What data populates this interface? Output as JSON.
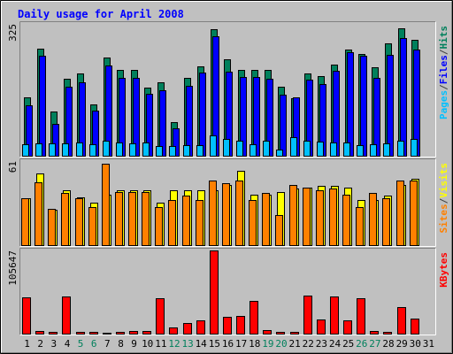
{
  "chart_data": {
    "type": "bar",
    "title": "Daily usage for April 2008",
    "categories": [
      "1",
      "2",
      "3",
      "4",
      "5",
      "6",
      "7",
      "8",
      "9",
      "10",
      "11",
      "12",
      "13",
      "14",
      "15",
      "16",
      "17",
      "18",
      "19",
      "20",
      "21",
      "22",
      "23",
      "24",
      "25",
      "26",
      "27",
      "28",
      "29",
      "30",
      "31"
    ],
    "weekend_days": [
      "5",
      "6",
      "12",
      "13",
      "19",
      "20",
      "26",
      "27"
    ],
    "panels": [
      {
        "id": "hits-files-pages",
        "ymax_label": "325",
        "ymax": 325,
        "legend": [
          {
            "name": "Pages",
            "color": "#00c0ff"
          },
          {
            "name": "/",
            "color": "#404040"
          },
          {
            "name": "Files",
            "color": "#0000ff"
          },
          {
            "name": "/",
            "color": "#404040"
          },
          {
            "name": "Hits",
            "color": "#00805c"
          }
        ],
        "series": [
          {
            "name": "Hits",
            "color": "#00805c",
            "values": [
              145,
              264,
              110,
              190,
              203,
              128,
              243,
              213,
              212,
              170,
              182,
              84,
              192,
              220,
              312,
              238,
              212,
              212,
              212,
              172,
              143,
              203,
              197,
              226,
              262,
              252,
              218,
              278,
              314,
              286,
              0
            ]
          },
          {
            "name": "Files",
            "color": "#0000ff",
            "values": [
              126,
              246,
              80,
              172,
              182,
              112,
              223,
              193,
              193,
              154,
              162,
              70,
              173,
              205,
              294,
              209,
              195,
              195,
              190,
              151,
              146,
              189,
              177,
              210,
              255,
              248,
              192,
              250,
              290,
              262,
              0
            ]
          },
          {
            "name": "Pages",
            "color": "#00c0ff",
            "values": [
              31,
              33,
              32,
              32,
              34,
              30,
              38,
              34,
              33,
              35,
              27,
              26,
              29,
              28,
              51,
              44,
              39,
              31,
              38,
              17,
              48,
              40,
              36,
              35,
              35,
              29,
              30,
              33,
              40,
              43,
              0
            ]
          }
        ]
      },
      {
        "id": "visits-sites",
        "ymax_label": "61",
        "ymax": 61,
        "legend": [
          {
            "name": "Sites",
            "color": "#ff8000"
          },
          {
            "name": "/",
            "color": "#404040"
          },
          {
            "name": "Visits",
            "color": "#ffff00"
          }
        ],
        "series": [
          {
            "name": "Visits",
            "color": "#ffff00",
            "values": [
              34,
              52,
              26,
              40,
              35,
              31,
              37,
              40,
              40,
              40,
              31,
              40,
              40,
              40,
              40,
              44,
              54,
              37,
              37,
              39,
              41,
              42,
              43,
              43,
              42,
              33,
              33,
              36,
              44,
              48,
              0
            ]
          },
          {
            "name": "Sites",
            "color": "#ff8000",
            "values": [
              34,
              46,
              27,
              38,
              34,
              28,
              59,
              39,
              39,
              39,
              28,
              33,
              36,
              33,
              47,
              45,
              47,
              33,
              38,
              22,
              44,
              42,
              40,
              41,
              37,
              28,
              38,
              34,
              47,
              47,
              0
            ]
          }
        ]
      },
      {
        "id": "kbytes",
        "ymax_label": "105647",
        "ymax": 105647,
        "legend": [
          {
            "name": "KBytes",
            "color": "#ff0000"
          }
        ],
        "series": [
          {
            "name": "KBytes",
            "color": "#ff0000",
            "values": [
              47000,
              5000,
              3000,
              48000,
              3000,
              3000,
              2000,
              3000,
              4000,
              4000,
              46000,
              9000,
              14000,
              18000,
              105647,
              22000,
              23000,
              42000,
              6000,
              3000,
              3000,
              49000,
              19000,
              48000,
              18000,
              46000,
              4000,
              3000,
              34000,
              20000,
              0
            ]
          }
        ]
      }
    ]
  }
}
